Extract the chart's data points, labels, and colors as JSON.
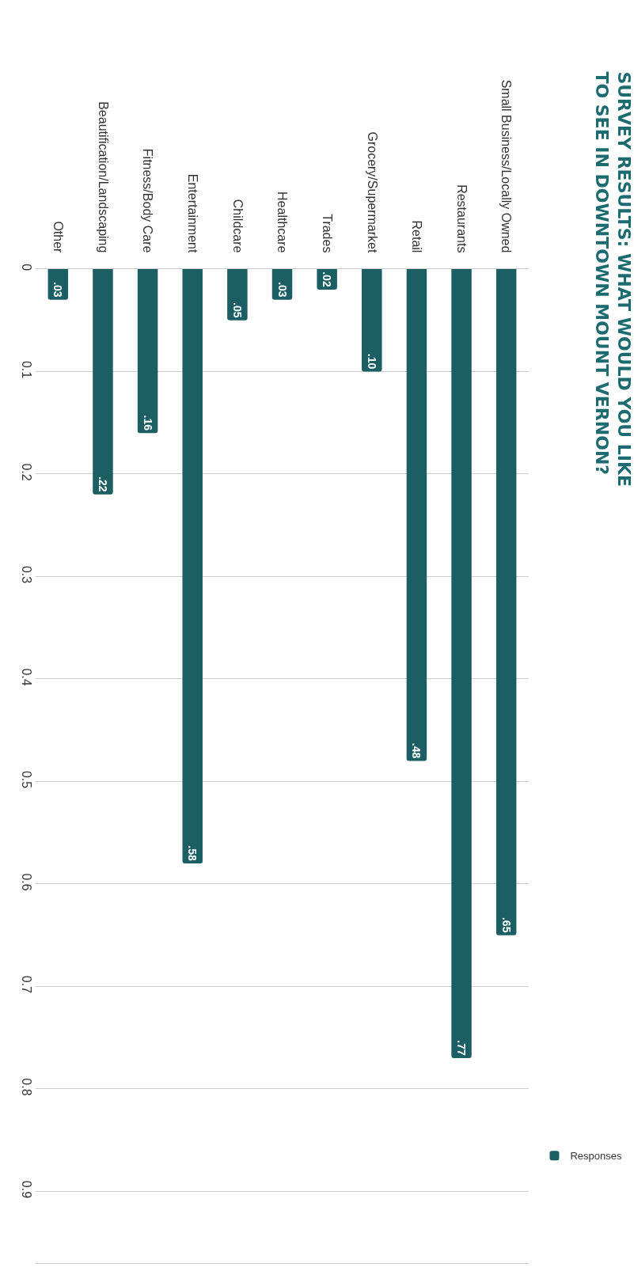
{
  "chart_data": {
    "type": "bar",
    "title": "SURVEY RESULTS: WHAT WOULD YOU LIKE TO SEE IN DOWNTOWN MOUNT VERNON?",
    "categories": [
      "Other",
      "Beautification/Landscaping",
      "Fitness/Body Care",
      "Entertainment",
      "Childcare",
      "Healthcare",
      "Trades",
      "Grocery/Supermarket",
      "Retail",
      "Restaurants",
      "Small Business/Locally Owned"
    ],
    "series": [
      {
        "name": "Responses",
        "color": "#1b5e63",
        "values": [
          0.03,
          0.22,
          0.16,
          0.58,
          0.05,
          0.03,
          0.02,
          0.1,
          0.48,
          0.77,
          0.65
        ],
        "value_labels": [
          ".03",
          ".22",
          ".16",
          ".58",
          ".05",
          ".03",
          ".02",
          ".10",
          ".48",
          ".77",
          ".65"
        ]
      }
    ],
    "ylim": [
      0.97,
      0
    ],
    "yticks": [
      0,
      0.1,
      0.2,
      0.3,
      0.4,
      0.5,
      0.6,
      0.7,
      0.8,
      0.9
    ],
    "grid": "y",
    "legend": "bottom right"
  }
}
